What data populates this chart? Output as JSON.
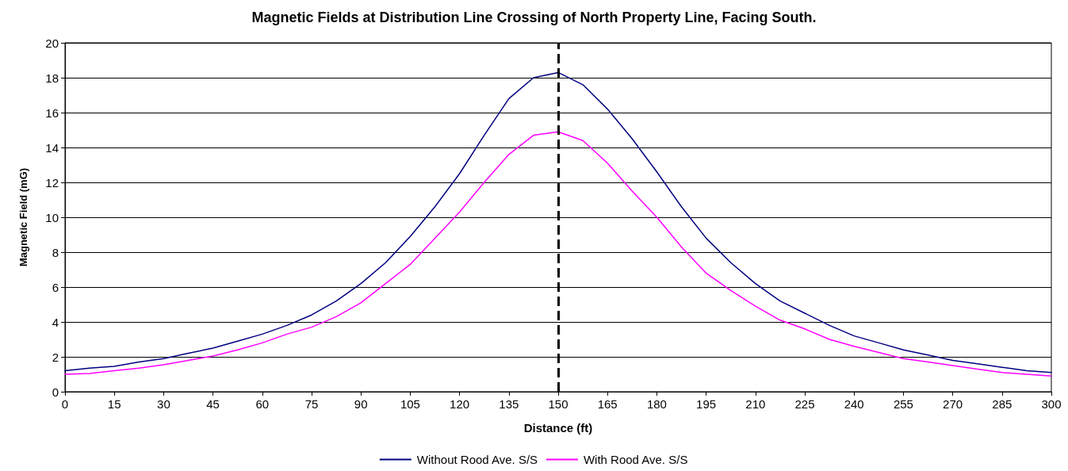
{
  "chart_data": {
    "type": "line",
    "title": "Magnetic Fields at Distribution Line Crossing of North Property Line, Facing South.",
    "xlabel": "Distance (ft)",
    "ylabel": "Magnetic Field (mG)",
    "x": [
      0,
      7.5,
      15,
      22.5,
      30,
      37.5,
      45,
      52.5,
      60,
      67.5,
      75,
      82.5,
      90,
      97.5,
      105,
      112.5,
      120,
      127.5,
      135,
      142.5,
      150,
      157.5,
      165,
      172.5,
      180,
      187.5,
      195,
      202.5,
      210,
      217.5,
      225,
      232.5,
      240,
      247.5,
      255,
      262.5,
      270,
      277.5,
      285,
      292.5,
      300
    ],
    "series": [
      {
        "name": "Without Rood Ave. S/S",
        "color": "#000080",
        "values": [
          1.2,
          1.35,
          1.45,
          1.7,
          1.9,
          2.2,
          2.5,
          2.9,
          3.3,
          3.8,
          4.4,
          5.2,
          6.2,
          7.4,
          8.9,
          10.6,
          12.5,
          14.7,
          16.8,
          18.0,
          18.3,
          17.6,
          16.2,
          14.5,
          12.6,
          10.6,
          8.8,
          7.4,
          6.2,
          5.2,
          4.5,
          3.8,
          3.2,
          2.8,
          2.4,
          2.1,
          1.8,
          1.6,
          1.4,
          1.2,
          1.1
        ]
      },
      {
        "name": "With Rood Ave. S/S",
        "color": "#ff00ff",
        "values": [
          1.0,
          1.05,
          1.2,
          1.35,
          1.55,
          1.8,
          2.05,
          2.4,
          2.8,
          3.3,
          3.7,
          4.3,
          5.1,
          6.2,
          7.3,
          8.8,
          10.3,
          12.0,
          13.6,
          14.7,
          14.9,
          14.4,
          13.1,
          11.5,
          10.0,
          8.3,
          6.8,
          5.8,
          4.9,
          4.1,
          3.6,
          3.0,
          2.6,
          2.25,
          1.9,
          1.7,
          1.5,
          1.3,
          1.1,
          1.0,
          0.9
        ]
      }
    ],
    "xlim": [
      0,
      300
    ],
    "xticks": [
      0,
      15,
      30,
      45,
      60,
      75,
      90,
      105,
      120,
      135,
      150,
      165,
      180,
      195,
      210,
      225,
      240,
      255,
      270,
      285,
      300
    ],
    "ylim": [
      0,
      20
    ],
    "yticks": [
      0,
      2,
      4,
      6,
      8,
      10,
      12,
      14,
      16,
      18,
      20
    ],
    "ref_lines": [
      {
        "axis": "x",
        "value": 150,
        "color": "#000000",
        "line_style": "dashed"
      }
    ],
    "grid": "y",
    "legend": "bottom",
    "marker": "none",
    "line_style": "solid"
  }
}
